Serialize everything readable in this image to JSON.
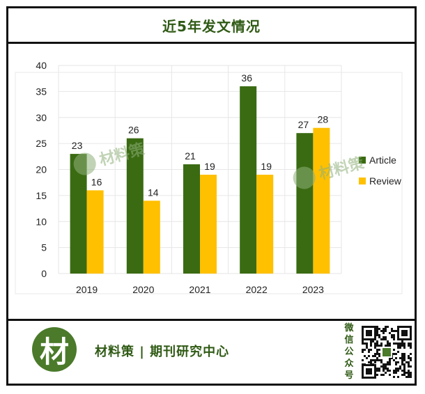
{
  "title": "近5年发文情况",
  "chart_data": {
    "type": "bar",
    "title": "近5年发文情况",
    "categories": [
      "2019",
      "2020",
      "2021",
      "2022",
      "2023"
    ],
    "series": [
      {
        "name": "Article",
        "values": [
          23,
          26,
          21,
          36,
          27
        ],
        "color": "#3a6b12"
      },
      {
        "name": "Review",
        "values": [
          16,
          14,
          19,
          19,
          28
        ],
        "color": "#ffc000"
      }
    ],
    "ylim": [
      0,
      40
    ],
    "yticks": [
      "0",
      "5",
      "10",
      "15",
      "20",
      "25",
      "30",
      "35",
      "40"
    ],
    "xlabel": "",
    "ylabel": "",
    "grid": true,
    "legend": "right",
    "data_labels": true
  },
  "watermark": "材料策",
  "footer": {
    "logo_char": "材",
    "brand": "材料策 | 期刊研究中心",
    "wechat_label": [
      "微",
      "信",
      "公",
      "众",
      "号"
    ]
  },
  "colors": {
    "title": "#2f5a14",
    "article": "#3a6b12",
    "review": "#ffc000",
    "logo": "#4a7a2a",
    "grid": "#e6e6e6"
  }
}
